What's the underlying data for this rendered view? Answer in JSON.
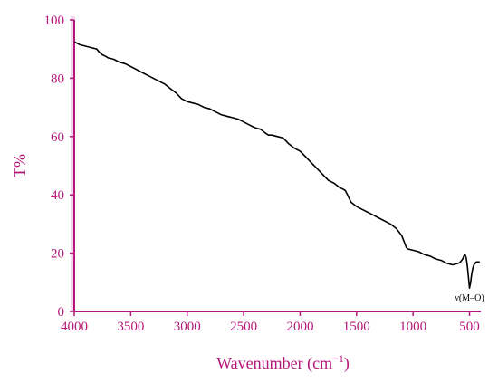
{
  "colors": {
    "axis": "#b5177a",
    "axis_band": "#f6d3ec",
    "line": "#000000",
    "background": "#ffffff"
  },
  "chart_data": {
    "type": "line",
    "xlabel": "Wavenumber (cm",
    "xlabel_superscript": "−1",
    "xlabel_suffix": ")",
    "ylabel": "T%",
    "xlim": [
      4000,
      400
    ],
    "ylim": [
      0,
      100
    ],
    "x_reversed": true,
    "grid": false,
    "xticks": [
      4000,
      3500,
      3000,
      2500,
      2000,
      1500,
      1000,
      500
    ],
    "yticks": [
      0,
      20,
      40,
      60,
      80,
      100
    ],
    "series": [
      {
        "x": [
          4000,
          3950,
          3900,
          3850,
          3800,
          3780,
          3750,
          3720,
          3700,
          3650,
          3600,
          3550,
          3500,
          3450,
          3400,
          3350,
          3300,
          3250,
          3200,
          3150,
          3100,
          3050,
          3000,
          2950,
          2900,
          2850,
          2800,
          2750,
          2700,
          2650,
          2600,
          2550,
          2500,
          2450,
          2400,
          2350,
          2300,
          2280,
          2250,
          2200,
          2150,
          2100,
          2050,
          2000,
          1950,
          1900,
          1850,
          1800,
          1750,
          1700,
          1650,
          1620,
          1600,
          1580,
          1550,
          1500,
          1450,
          1400,
          1350,
          1300,
          1250,
          1200,
          1150,
          1100,
          1080,
          1060,
          1050,
          1000,
          950,
          900,
          850,
          800,
          750,
          700,
          650,
          600,
          580,
          560,
          550,
          540,
          530,
          520,
          510,
          500,
          490,
          480,
          470,
          460,
          450,
          440,
          430,
          420,
          410
        ],
        "y": [
          92.5,
          91.5,
          91,
          90.5,
          90,
          89,
          88,
          87.5,
          87,
          86.5,
          85.5,
          85,
          84,
          83,
          82,
          81,
          80,
          79,
          78,
          76.5,
          75,
          73,
          72,
          71.5,
          71,
          70,
          69.5,
          68.5,
          67.5,
          67,
          66.5,
          66,
          65,
          64,
          63,
          62.5,
          61,
          60.5,
          60.5,
          60,
          59.5,
          57.5,
          56,
          55,
          53,
          51,
          49,
          47,
          45,
          44,
          42.5,
          42,
          41.5,
          40,
          37.5,
          36,
          35,
          34,
          33,
          32,
          31,
          30,
          28.5,
          26,
          24,
          22,
          21.5,
          21,
          20.5,
          19.5,
          19,
          18,
          17.5,
          16.5,
          16,
          16.5,
          17,
          18,
          19,
          19.5,
          18.5,
          16,
          12,
          8,
          10,
          13,
          15,
          16,
          16.5,
          17,
          17,
          17,
          17
        ],
        "annotation": {
          "text": "ν(M–O)",
          "x": 500,
          "y": 8
        }
      }
    ]
  }
}
